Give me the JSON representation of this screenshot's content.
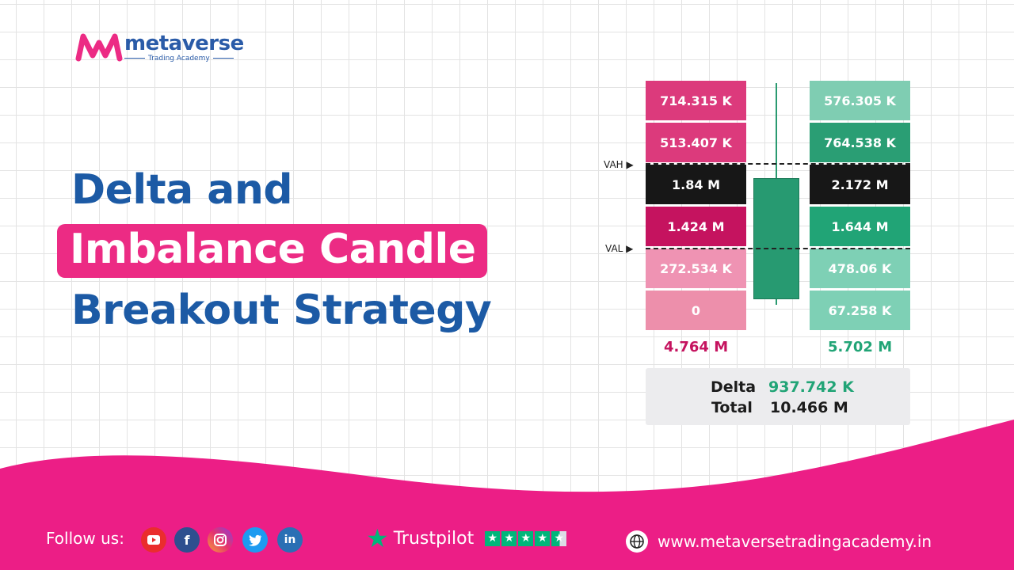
{
  "brand": {
    "name": "metaverse",
    "tagline": "Trading Academy"
  },
  "title": {
    "line1": "Delta and",
    "line2": "Imbalance Candle",
    "line3": "Breakout Strategy"
  },
  "footprint": {
    "markers": {
      "vah": "VAH",
      "val": "VAL"
    },
    "bid": [
      "714.315 K",
      "513.407 K",
      "1.84 M",
      "1.424 M",
      "272.534 K",
      "0"
    ],
    "ask": [
      "576.305 K",
      "764.538 K",
      "2.172 M",
      "1.644 M",
      "478.06 K",
      "67.258 K"
    ],
    "bid_colors": [
      "#dc3a7c",
      "#dc3a7c",
      "#171717",
      "#c5135f",
      "#ef93b3",
      "#ed8fab"
    ],
    "ask_colors": [
      "#7fcdb2",
      "#2a9e74",
      "#171717",
      "#21a476",
      "#7ed0b5",
      "#7ed0b5"
    ],
    "bid_total": "4.764 M",
    "ask_total": "5.702 M",
    "summary": {
      "delta_label": "Delta",
      "delta_value": "937.742 K",
      "total_label": "Total",
      "total_value": "10.466 M"
    }
  },
  "footer": {
    "follow_label": "Follow us:",
    "socials": [
      "youtube-icon",
      "facebook-icon",
      "instagram-icon",
      "twitter-icon",
      "linkedin-icon"
    ],
    "trustpilot": "Trustpilot",
    "website": "www.metaversetradingacademy.in"
  },
  "colors": {
    "brand_pink": "#ec2b84",
    "brand_blue": "#1c5aa5",
    "buy_green": "#21a476",
    "sell_pink": "#c5135f"
  }
}
